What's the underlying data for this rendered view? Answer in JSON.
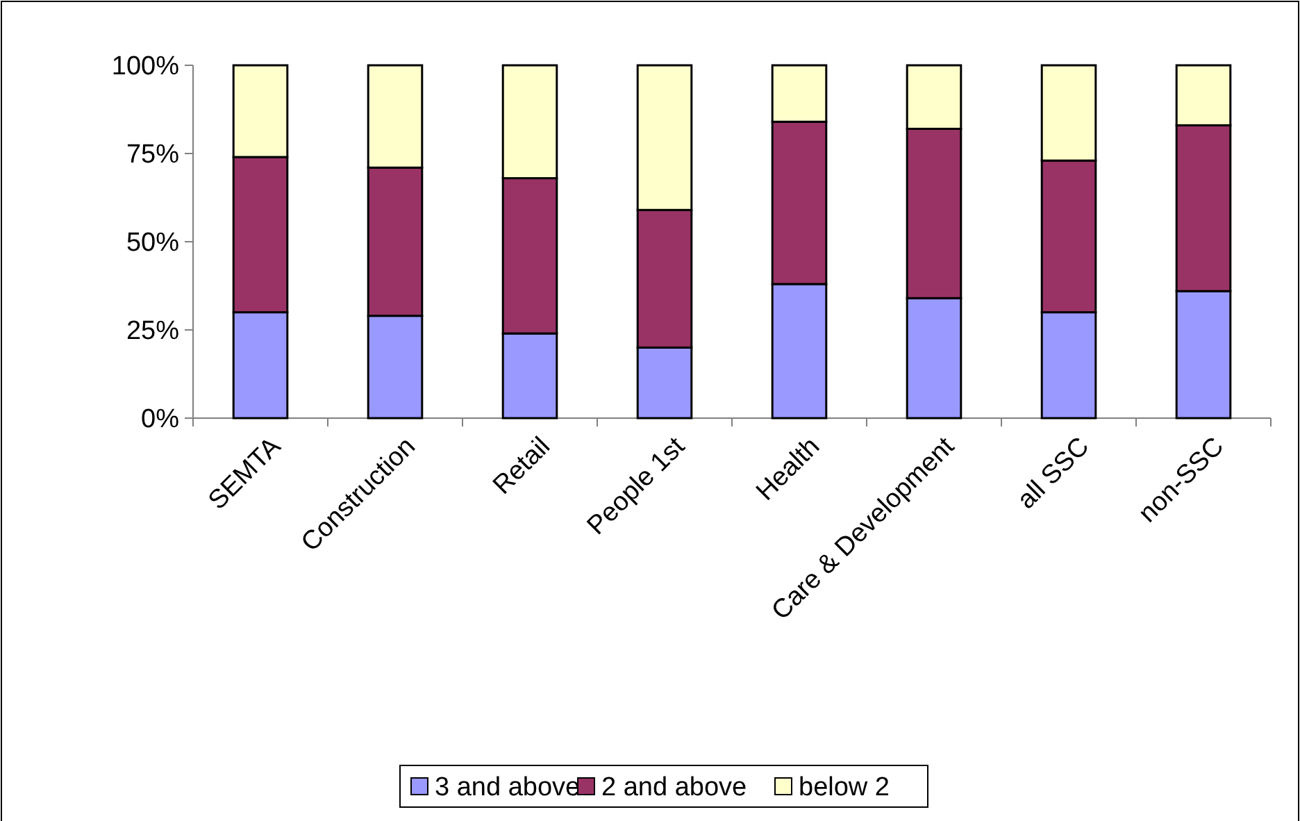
{
  "chart_data": {
    "type": "bar",
    "stacked": true,
    "categories": [
      "SEMTA",
      "Construction",
      "Retail",
      "People 1st",
      "Health",
      "Care & Development",
      "all SSC",
      "non-SSC"
    ],
    "series": [
      {
        "name": "3 and above",
        "color": "#9999ff",
        "values": [
          30,
          29,
          24,
          20,
          38,
          34,
          30,
          36
        ]
      },
      {
        "name": "2 and above",
        "color": "#993366",
        "values": [
          44,
          42,
          44,
          39,
          46,
          48,
          43,
          47
        ]
      },
      {
        "name": "below 2",
        "color": "#ffffcc",
        "values": [
          26,
          29,
          32,
          41,
          16,
          18,
          27,
          17
        ]
      }
    ],
    "ylim": [
      0,
      100
    ],
    "yticks": [
      {
        "value": 0,
        "label": "0%"
      },
      {
        "value": 25,
        "label": "25%"
      },
      {
        "value": 50,
        "label": "50%"
      },
      {
        "value": 75,
        "label": "75%"
      },
      {
        "value": 100,
        "label": "100%"
      }
    ],
    "grid": false,
    "legend": "bottom"
  }
}
